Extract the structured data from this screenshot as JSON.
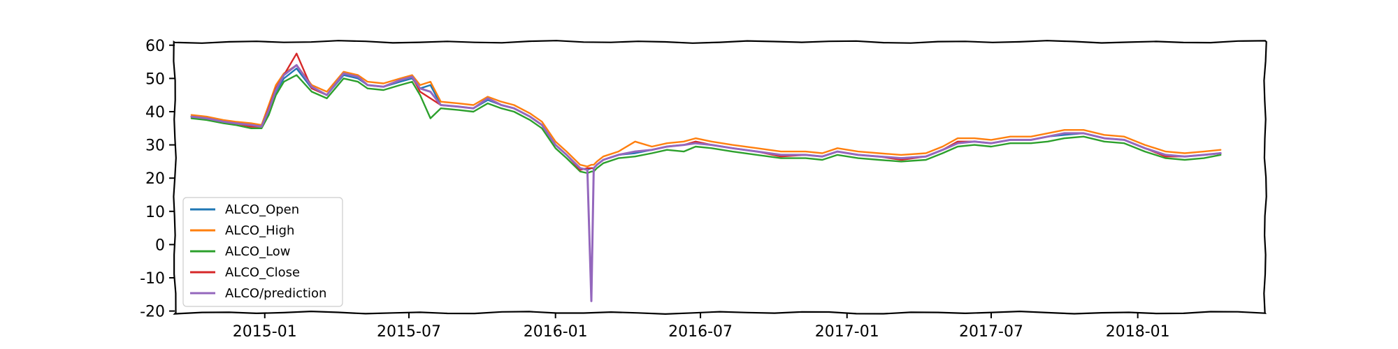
{
  "chart_data": {
    "type": "line",
    "title": "",
    "xlabel": "",
    "ylabel": "",
    "x_ticks": [
      "2015-01",
      "2015-07",
      "2016-01",
      "2016-07",
      "2017-01",
      "2017-07",
      "2018-01"
    ],
    "y_ticks": [
      60,
      50,
      40,
      30,
      20,
      10,
      0,
      -10,
      -20
    ],
    "y_tick_labels": [
      "60",
      "50",
      "40",
      "30",
      "20",
      "10",
      "0",
      "-10",
      "-20"
    ],
    "xlim": [
      "2014-09-10",
      "2018-06-10"
    ],
    "ylim": [
      -20.5,
      61
    ],
    "grid": false,
    "legend_position": "lower-left",
    "dates": [
      "2014-10-01",
      "2014-10-20",
      "2014-11-10",
      "2014-11-25",
      "2014-12-15",
      "2014-12-28",
      "2015-01-06",
      "2015-01-15",
      "2015-01-25",
      "2015-02-10",
      "2015-03-01",
      "2015-03-20",
      "2015-04-10",
      "2015-04-28",
      "2015-05-10",
      "2015-05-30",
      "2015-06-20",
      "2015-07-05",
      "2015-07-15",
      "2015-07-28",
      "2015-08-10",
      "2015-09-01",
      "2015-09-20",
      "2015-10-08",
      "2015-10-25",
      "2015-11-10",
      "2015-11-30",
      "2015-12-15",
      "2016-01-01",
      "2016-01-15",
      "2016-02-01",
      "2016-02-10",
      "2016-02-15",
      "2016-02-18",
      "2016-02-22",
      "2016-03-01",
      "2016-03-20",
      "2016-04-10",
      "2016-05-01",
      "2016-05-20",
      "2016-06-10",
      "2016-06-25",
      "2016-07-15",
      "2016-08-10",
      "2016-09-10",
      "2016-10-10",
      "2016-11-10",
      "2016-12-01",
      "2016-12-20",
      "2017-01-15",
      "2017-02-10",
      "2017-03-10",
      "2017-04-10",
      "2017-05-01",
      "2017-05-20",
      "2017-06-10",
      "2017-07-01",
      "2017-07-25",
      "2017-08-20",
      "2017-09-10",
      "2017-10-01",
      "2017-10-25",
      "2017-11-20",
      "2017-12-15",
      "2018-01-10",
      "2018-02-05",
      "2018-03-01",
      "2018-03-25",
      "2018-04-15"
    ],
    "series": [
      {
        "name": "ALCO_Open",
        "color": "#1f77b4",
        "values": [
          38.5,
          38.0,
          37.0,
          36.5,
          36.0,
          35.5,
          40.0,
          46.0,
          50.0,
          53.0,
          47.0,
          45.0,
          51.0,
          50.0,
          48.0,
          47.5,
          49.0,
          50.0,
          47.0,
          48.0,
          42.0,
          41.5,
          41.0,
          43.5,
          42.0,
          41.0,
          38.5,
          36.0,
          30.0,
          27.0,
          23.0,
          22.5,
          23.0,
          23.0,
          24.0,
          25.5,
          27.0,
          27.5,
          28.5,
          29.5,
          30.0,
          30.5,
          30.0,
          29.0,
          28.0,
          27.0,
          27.0,
          26.5,
          28.0,
          27.0,
          26.5,
          26.0,
          26.5,
          28.5,
          30.5,
          31.0,
          30.5,
          31.5,
          31.5,
          32.5,
          33.0,
          33.5,
          32.0,
          31.5,
          29.0,
          27.0,
          26.5,
          27.0,
          27.5
        ]
      },
      {
        "name": "ALCO_High",
        "color": "#ff7f0e",
        "values": [
          39.0,
          38.5,
          37.5,
          37.0,
          36.5,
          36.0,
          42.0,
          48.0,
          51.5,
          54.0,
          48.0,
          46.0,
          52.0,
          51.0,
          49.0,
          48.5,
          50.0,
          51.0,
          48.0,
          49.0,
          43.0,
          42.5,
          42.0,
          44.5,
          43.0,
          42.0,
          39.5,
          37.0,
          31.0,
          28.0,
          24.0,
          23.5,
          24.0,
          24.0,
          25.0,
          26.5,
          28.0,
          31.0,
          29.5,
          30.5,
          31.0,
          32.0,
          31.0,
          30.0,
          29.0,
          28.0,
          28.0,
          27.5,
          29.0,
          28.0,
          27.5,
          27.0,
          27.5,
          29.5,
          32.0,
          32.0,
          31.5,
          32.5,
          32.5,
          33.5,
          34.5,
          34.5,
          33.0,
          32.5,
          30.0,
          28.0,
          27.5,
          28.0,
          28.5
        ]
      },
      {
        "name": "ALCO_Low",
        "color": "#2ca02c",
        "values": [
          38.0,
          37.5,
          36.5,
          36.0,
          35.0,
          35.0,
          39.0,
          45.0,
          49.0,
          51.0,
          46.0,
          44.0,
          50.0,
          49.0,
          47.0,
          46.5,
          48.0,
          49.0,
          45.0,
          38.0,
          41.0,
          40.5,
          40.0,
          42.5,
          41.0,
          40.0,
          37.5,
          35.0,
          29.0,
          26.0,
          22.0,
          21.5,
          22.0,
          22.0,
          23.0,
          24.5,
          26.0,
          26.5,
          27.5,
          28.5,
          28.0,
          29.5,
          29.0,
          28.0,
          27.0,
          26.0,
          26.0,
          25.5,
          27.0,
          26.0,
          25.5,
          25.0,
          25.5,
          27.5,
          29.5,
          30.0,
          29.5,
          30.5,
          30.5,
          31.0,
          32.0,
          32.5,
          31.0,
          30.5,
          28.0,
          26.0,
          25.5,
          26.0,
          27.0
        ]
      },
      {
        "name": "ALCO_Close",
        "color": "#d62728",
        "values": [
          38.5,
          38.0,
          37.0,
          36.5,
          35.5,
          35.5,
          41.0,
          47.0,
          51.0,
          57.5,
          47.0,
          45.0,
          51.5,
          50.5,
          48.0,
          47.5,
          49.5,
          50.5,
          46.0,
          44.0,
          42.0,
          41.5,
          41.0,
          44.0,
          42.0,
          41.0,
          38.5,
          36.0,
          30.0,
          27.0,
          22.5,
          23.0,
          23.0,
          23.0,
          24.0,
          25.5,
          27.0,
          28.0,
          28.5,
          29.5,
          30.0,
          31.0,
          30.0,
          29.0,
          28.0,
          26.5,
          27.0,
          26.5,
          28.0,
          27.0,
          26.5,
          25.5,
          26.5,
          28.5,
          31.0,
          31.0,
          30.5,
          31.5,
          31.5,
          32.5,
          33.5,
          33.5,
          32.0,
          31.5,
          29.0,
          26.5,
          26.5,
          27.0,
          27.5
        ]
      },
      {
        "name": "ALCO/prediction",
        "color": "#9467bd",
        "values": [
          38.5,
          38.0,
          37.0,
          36.5,
          36.0,
          35.5,
          40.5,
          46.5,
          51.0,
          54.0,
          47.5,
          45.0,
          51.5,
          50.5,
          48.0,
          47.5,
          49.5,
          50.5,
          47.0,
          46.0,
          42.0,
          41.5,
          41.0,
          44.0,
          42.0,
          41.0,
          38.5,
          36.0,
          30.0,
          27.0,
          23.0,
          22.5,
          -17.0,
          23.0,
          24.0,
          25.5,
          27.0,
          28.0,
          28.5,
          29.5,
          30.0,
          30.5,
          30.0,
          29.0,
          28.0,
          27.0,
          27.0,
          26.5,
          28.0,
          27.0,
          26.5,
          26.0,
          26.5,
          28.5,
          30.5,
          31.0,
          30.5,
          31.5,
          31.5,
          32.5,
          33.5,
          33.5,
          32.0,
          31.5,
          29.0,
          27.0,
          26.5,
          27.0,
          27.5
        ]
      }
    ]
  }
}
